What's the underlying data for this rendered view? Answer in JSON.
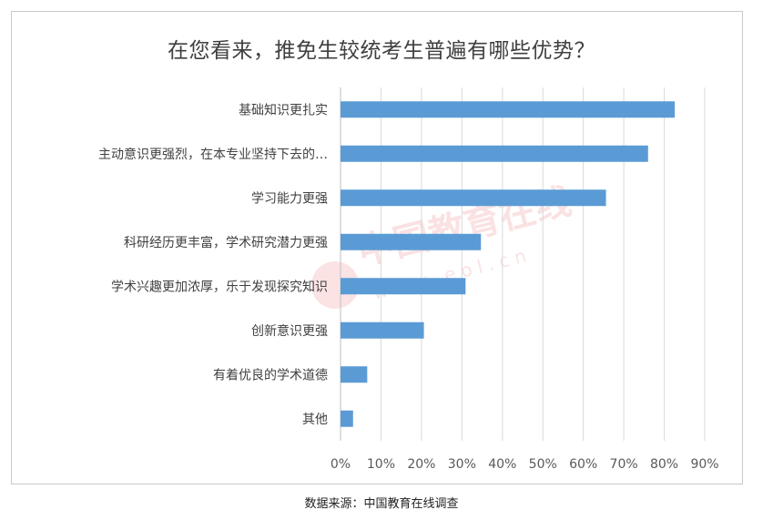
{
  "chart_data": {
    "type": "bar",
    "orientation": "horizontal",
    "title": "在您看来，推免生较统考生普遍有哪些优势？",
    "categories": [
      "基础知识更扎实",
      "主动意识更强烈，在本专业坚持下去的…",
      "学习能力更强",
      "科研经历更丰富，学术研究潜力更强",
      "学术兴趣更加浓厚，乐于发现探究知识",
      "创新意识更强",
      "有着优良的学术道德",
      "其他"
    ],
    "values": [
      0.826,
      0.76,
      0.656,
      0.347,
      0.309,
      0.206,
      0.066,
      0.031
    ],
    "xlim": [
      0,
      0.9
    ],
    "xticks": [
      "0%",
      "10%",
      "20%",
      "30%",
      "40%",
      "50%",
      "60%",
      "70%",
      "80%",
      "90%"
    ],
    "grid": true,
    "bar_color": "#5b9bd5",
    "xlabel": "",
    "ylabel": ""
  },
  "watermark": {
    "text": "中国教育在线",
    "url_text": "w w w . e o l . c n"
  },
  "source": "数据来源：中国教育在线调查"
}
